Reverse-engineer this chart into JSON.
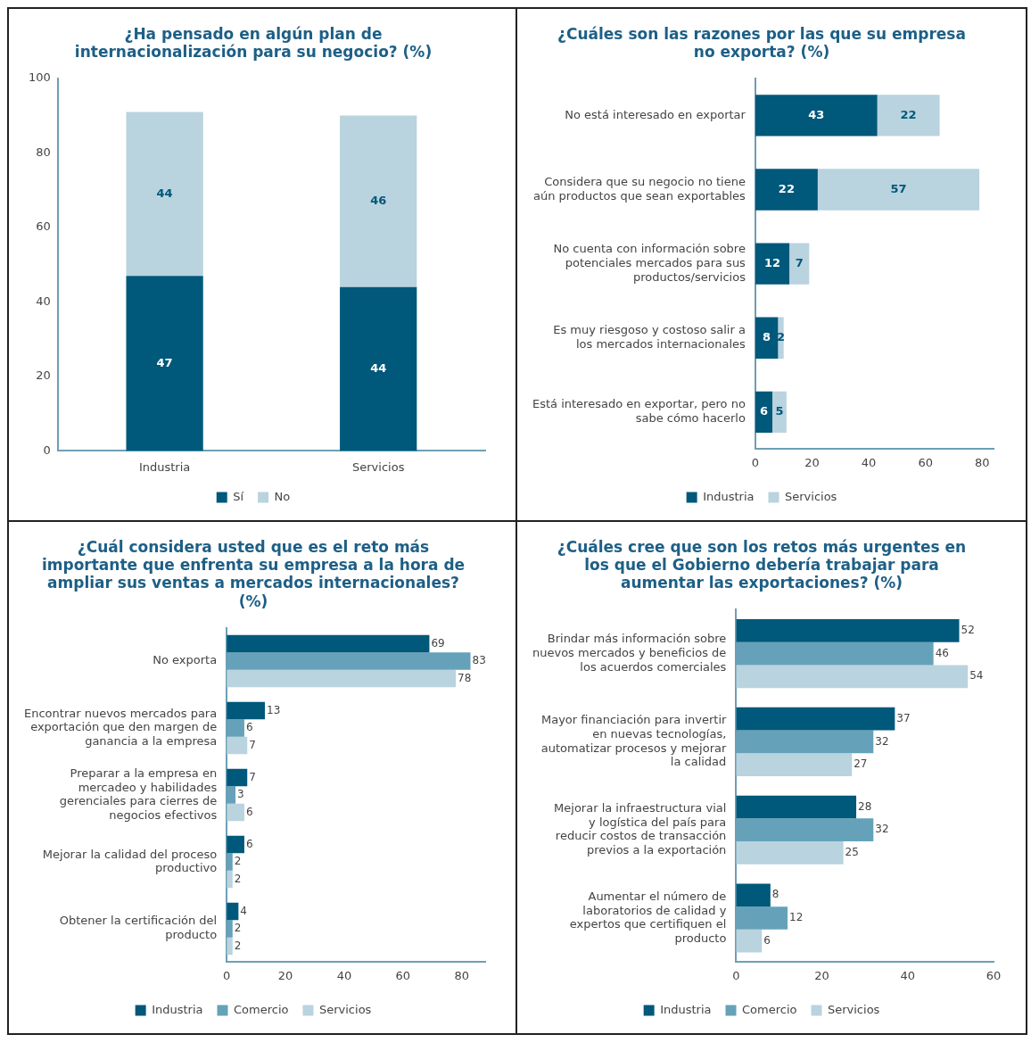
{
  "chart_data": [
    {
      "type": "bar",
      "title": "¿Ha pensado en algún plan de internacionalización para su negocio? (%)",
      "categories": [
        "Industria",
        "Servicios"
      ],
      "stacked": true,
      "data_labels": true,
      "grid": false,
      "legend": "bottom",
      "ylim": [
        0,
        100
      ],
      "yticks": [
        0,
        20,
        40,
        60,
        80,
        100
      ],
      "series": [
        {
          "name": "Sí",
          "color": "#00587a",
          "values": [
            47,
            44
          ]
        },
        {
          "name": "No",
          "color": "#b9d3df",
          "values": [
            44,
            46
          ]
        }
      ]
    },
    {
      "type": "bar",
      "title": "¿Cuáles son las razones por las que su empresa no exporta? (%)",
      "orientation": "horizontal",
      "stacked": true,
      "data_labels": true,
      "grid": false,
      "legend": "bottom",
      "xlim": [
        0,
        84
      ],
      "xticks": [
        0,
        20,
        40,
        60,
        80
      ],
      "categories": [
        "No está interesado en exportar",
        "Considera que su negocio no tiene aún productos que sean exportables",
        "No cuenta con información sobre potenciales mercados para sus productos/servicios",
        "Es muy riesgoso y costoso salir a los mercados internacionales",
        "Está interesado en exportar, pero no sabe cómo hacerlo"
      ],
      "series": [
        {
          "name": "Industria",
          "color": "#00587a",
          "values": [
            43,
            22,
            12,
            8,
            6
          ]
        },
        {
          "name": "Servicios",
          "color": "#b9d3df",
          "values": [
            22,
            57,
            7,
            2,
            5
          ]
        }
      ]
    },
    {
      "type": "bar",
      "title": "¿Cuál considera usted que es el reto más importante que enfrenta su empresa a la hora de ampliar sus ventas a mercados internacionales? (%)",
      "orientation": "horizontal",
      "data_labels": true,
      "grid": false,
      "legend": "bottom",
      "xlim": [
        0,
        88
      ],
      "xticks": [
        0,
        20,
        40,
        60,
        80
      ],
      "categories": [
        "No exporta",
        "Encontrar nuevos mercados para exportación que den margen de ganancia a la empresa",
        "Preparar a la empresa en mercadeo y habilidades gerenciales para cierres de negocios efectivos",
        "Mejorar la calidad del proceso productivo",
        "Obtener la certificación del producto"
      ],
      "series": [
        {
          "name": "Industria",
          "color": "#00587a",
          "values": [
            69,
            13,
            7,
            6,
            4
          ]
        },
        {
          "name": "Comercio",
          "color": "#65a2ba",
          "values": [
            83,
            6,
            3,
            2,
            2
          ]
        },
        {
          "name": "Servicios",
          "color": "#b9d3df",
          "values": [
            78,
            7,
            6,
            2,
            2
          ]
        }
      ]
    },
    {
      "type": "bar",
      "title": "¿Cuáles cree que son los retos más urgentes en los que el Gobierno debería trabajar para aumentar las exportaciones? (%)",
      "orientation": "horizontal",
      "data_labels": true,
      "grid": false,
      "legend": "bottom",
      "xlim": [
        0,
        60
      ],
      "xticks": [
        0,
        20,
        40,
        60
      ],
      "categories": [
        "Brindar más información sobre nuevos mercados y beneficios de los acuerdos comerciales",
        "Mayor financiación para invertir en nuevas tecnologías, automatizar procesos y mejorar la calidad",
        "Mejorar la infraestructura vial y logística del país para reducir costos de transacción previos a la exportación",
        "Aumentar el número de laboratorios de calidad y expertos que certifiquen el producto"
      ],
      "series": [
        {
          "name": "Industria",
          "color": "#00587a",
          "values": [
            52,
            37,
            28,
            8
          ]
        },
        {
          "name": "Comercio",
          "color": "#65a2ba",
          "values": [
            46,
            32,
            32,
            12
          ]
        },
        {
          "name": "Servicios",
          "color": "#b9d3df",
          "values": [
            54,
            27,
            25,
            6
          ]
        }
      ]
    }
  ]
}
